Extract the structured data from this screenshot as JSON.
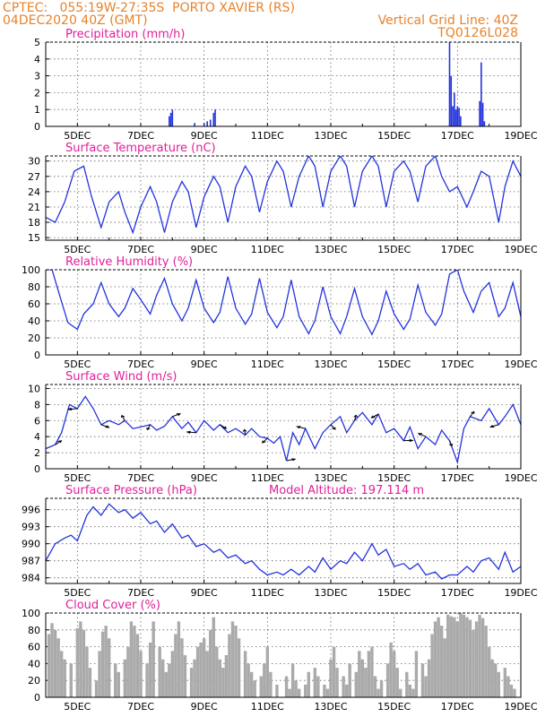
{
  "header": {
    "line1_left": "CPTEC:   055:19W-27:35S  PORTO XAVIER (RS)",
    "line2_left": "04DEC2020 40Z (GMT)",
    "line1_right": "Vertical Grid Line: 40Z",
    "line2_right": "TQ0126L028"
  },
  "colors": {
    "header": "#e8822a",
    "title": "#e0209a",
    "series": "#2233dd",
    "cloud": "#aaaaaa"
  },
  "chart_data": [
    {
      "id": "precip",
      "type": "bar",
      "title": "Precipitation (mm/h)",
      "ylim": [
        0,
        5
      ],
      "yticks": [
        0,
        1,
        2,
        3,
        4,
        5
      ],
      "xticks": [
        "5DEC",
        "7DEC",
        "9DEC",
        "11DEC",
        "13DEC",
        "15DEC",
        "17DEC",
        "19DEC"
      ],
      "xlim": [
        4.0,
        19.0
      ],
      "x": [
        7.9,
        7.95,
        8.0,
        8.7,
        9.0,
        9.1,
        9.2,
        9.3,
        9.35,
        16.75,
        16.8,
        16.85,
        16.9,
        16.95,
        17.0,
        17.05,
        17.1,
        17.7,
        17.75,
        17.8,
        17.85
      ],
      "values": [
        0.6,
        0.8,
        1.0,
        0.2,
        0.2,
        0.3,
        0.4,
        0.8,
        1.0,
        5.0,
        3.0,
        1.2,
        2.0,
        1.0,
        1.2,
        1.1,
        0.6,
        1.5,
        3.8,
        1.4,
        0.3
      ]
    },
    {
      "id": "temp",
      "type": "line",
      "title": "Surface Temperature (nC)",
      "ylim": [
        14.5,
        31
      ],
      "yticks": [
        15,
        18,
        21,
        24,
        27,
        30
      ],
      "xticks": [
        "5DEC",
        "7DEC",
        "9DEC",
        "11DEC",
        "13DEC",
        "15DEC",
        "17DEC",
        "19DEC"
      ],
      "xlim": [
        4.0,
        19.0
      ],
      "x": [
        4.0,
        4.3,
        4.6,
        4.9,
        5.2,
        5.45,
        5.75,
        6.0,
        6.3,
        6.5,
        6.75,
        7.0,
        7.3,
        7.5,
        7.75,
        8.0,
        8.3,
        8.5,
        8.75,
        9.0,
        9.3,
        9.5,
        9.75,
        10.0,
        10.3,
        10.5,
        10.75,
        11.0,
        11.3,
        11.5,
        11.75,
        12.0,
        12.3,
        12.5,
        12.75,
        13.0,
        13.3,
        13.5,
        13.75,
        14.0,
        14.3,
        14.5,
        14.75,
        15.0,
        15.3,
        15.5,
        15.75,
        16.0,
        16.3,
        16.5,
        16.75,
        17.0,
        17.3,
        17.5,
        17.75,
        18.0,
        18.3,
        18.5,
        18.75,
        19.0
      ],
      "values": [
        19,
        18,
        22,
        28,
        29,
        23,
        17,
        22,
        24,
        20,
        16,
        21,
        25,
        22,
        16,
        22,
        26,
        24,
        17,
        23,
        27,
        25,
        18,
        25,
        29,
        27,
        20,
        26,
        30,
        28,
        21,
        27,
        31,
        29,
        21,
        28,
        31,
        29,
        21,
        28,
        31,
        29,
        21,
        28,
        30,
        28,
        22,
        29,
        31,
        27,
        24,
        25,
        21,
        24,
        28,
        27,
        18,
        25,
        30,
        27
      ]
    },
    {
      "id": "rh",
      "type": "line",
      "title": "Relative Humidity (%)",
      "ylim": [
        0,
        100
      ],
      "yticks": [
        0,
        20,
        40,
        60,
        80,
        100
      ],
      "xticks": [
        "5DEC",
        "7DEC",
        "9DEC",
        "11DEC",
        "13DEC",
        "15DEC",
        "17DEC",
        "19DEC"
      ],
      "xlim": [
        4.0,
        19.0
      ],
      "x": [
        4.0,
        4.2,
        4.4,
        4.7,
        5.0,
        5.2,
        5.5,
        5.75,
        6.0,
        6.3,
        6.5,
        6.75,
        7.0,
        7.3,
        7.5,
        7.75,
        8.0,
        8.3,
        8.5,
        8.75,
        9.0,
        9.3,
        9.5,
        9.75,
        10.0,
        10.3,
        10.5,
        10.75,
        11.0,
        11.3,
        11.5,
        11.75,
        12.0,
        12.3,
        12.5,
        12.75,
        13.0,
        13.3,
        13.5,
        13.75,
        14.0,
        14.3,
        14.5,
        14.75,
        15.0,
        15.3,
        15.5,
        15.75,
        16.0,
        16.3,
        16.5,
        16.75,
        17.0,
        17.2,
        17.5,
        17.75,
        18.0,
        18.3,
        18.5,
        18.75,
        19.0
      ],
      "values": [
        100,
        100,
        75,
        38,
        30,
        48,
        60,
        85,
        60,
        45,
        55,
        78,
        65,
        48,
        70,
        90,
        60,
        40,
        55,
        88,
        55,
        38,
        50,
        92,
        55,
        36,
        48,
        90,
        50,
        32,
        45,
        88,
        45,
        25,
        40,
        80,
        45,
        25,
        45,
        78,
        45,
        24,
        40,
        75,
        48,
        30,
        42,
        82,
        50,
        35,
        48,
        95,
        100,
        75,
        50,
        75,
        85,
        45,
        55,
        85,
        45
      ]
    },
    {
      "id": "wind",
      "type": "line",
      "title": "Surface Wind (m/s)",
      "ylim": [
        0,
        10.5
      ],
      "yticks": [
        0,
        2,
        4,
        6,
        8,
        10
      ],
      "xticks": [
        "5DEC",
        "7DEC",
        "9DEC",
        "11DEC",
        "13DEC",
        "15DEC",
        "17DEC",
        "19DEC"
      ],
      "xlim": [
        4.0,
        19.0
      ],
      "x": [
        4.0,
        4.3,
        4.5,
        4.75,
        5.0,
        5.25,
        5.5,
        5.75,
        6.0,
        6.3,
        6.5,
        6.75,
        7.0,
        7.3,
        7.5,
        7.75,
        8.0,
        8.3,
        8.5,
        8.75,
        9.0,
        9.3,
        9.5,
        9.75,
        10.0,
        10.3,
        10.5,
        10.75,
        11.0,
        11.2,
        11.4,
        11.6,
        11.8,
        12.0,
        12.2,
        12.5,
        12.75,
        13.0,
        13.3,
        13.5,
        13.75,
        14.0,
        14.3,
        14.5,
        14.75,
        15.0,
        15.3,
        15.5,
        15.75,
        16.0,
        16.3,
        16.5,
        16.75,
        17.0,
        17.2,
        17.4,
        17.75,
        18.0,
        18.3,
        18.5,
        18.75,
        19.0
      ],
      "values": [
        2.5,
        3.0,
        4.5,
        8.0,
        7.5,
        9.0,
        7.5,
        5.5,
        6.0,
        5.5,
        6.0,
        5.0,
        5.2,
        5.5,
        4.8,
        5.3,
        6.5,
        5.0,
        5.8,
        4.5,
        6.0,
        4.8,
        5.5,
        4.5,
        5.0,
        4.2,
        5.0,
        4.0,
        3.8,
        3.2,
        4.0,
        1.0,
        4.5,
        3.0,
        5.0,
        2.5,
        4.5,
        5.5,
        6.5,
        4.5,
        6.0,
        7.0,
        5.5,
        6.8,
        4.5,
        5.0,
        3.5,
        5.2,
        2.5,
        4.0,
        3.0,
        4.8,
        3.5,
        0.8,
        5.0,
        6.5,
        6.0,
        7.5,
        5.5,
        6.5,
        8.0,
        5.5
      ]
    },
    {
      "id": "pressure",
      "type": "line",
      "title": "Surface Pressure (hPa)",
      "annotation": "Model Altitude: 197.114 m",
      "ylim": [
        983,
        998
      ],
      "yticks": [
        984,
        987,
        990,
        993,
        996
      ],
      "xticks": [
        "5DEC",
        "7DEC",
        "9DEC",
        "11DEC",
        "13DEC",
        "15DEC",
        "17DEC",
        "19DEC"
      ],
      "xlim": [
        4.0,
        19.0
      ],
      "x": [
        4.0,
        4.3,
        4.6,
        4.8,
        5.0,
        5.3,
        5.5,
        5.75,
        6.0,
        6.3,
        6.5,
        6.75,
        7.0,
        7.3,
        7.5,
        7.75,
        8.0,
        8.3,
        8.5,
        8.75,
        9.0,
        9.3,
        9.5,
        9.75,
        10.0,
        10.3,
        10.5,
        10.75,
        11.0,
        11.3,
        11.5,
        11.75,
        12.0,
        12.3,
        12.5,
        12.75,
        13.0,
        13.3,
        13.5,
        13.75,
        14.0,
        14.3,
        14.5,
        14.75,
        15.0,
        15.3,
        15.5,
        15.75,
        16.0,
        16.3,
        16.5,
        16.75,
        17.0,
        17.3,
        17.5,
        17.75,
        18.0,
        18.3,
        18.5,
        18.75,
        19.0
      ],
      "values": [
        987,
        990,
        991,
        991.5,
        990.5,
        995,
        996.5,
        995,
        997,
        995.5,
        996,
        994.5,
        995.5,
        993.5,
        994,
        992,
        993.5,
        991,
        991.5,
        989.5,
        990,
        988.5,
        989,
        987.5,
        988,
        986.5,
        987,
        985.5,
        984.5,
        985,
        984.5,
        985.5,
        984.5,
        986,
        985,
        987.5,
        985.5,
        987,
        986.5,
        988.5,
        987,
        990,
        988,
        989,
        986,
        986.5,
        985.5,
        986.5,
        984.5,
        985,
        983.8,
        984.5,
        984.5,
        986,
        985,
        987,
        987.5,
        985.5,
        988.5,
        985,
        986
      ]
    },
    {
      "id": "cloud",
      "type": "bar",
      "title": "Cloud Cover (%)",
      "ylim": [
        0,
        100
      ],
      "yticks": [
        0,
        20,
        40,
        60,
        80,
        100
      ],
      "xticks": [
        "5DEC",
        "7DEC",
        "9DEC",
        "11DEC",
        "13DEC",
        "15DEC",
        "17DEC",
        "19DEC"
      ],
      "xlim": [
        4.0,
        19.0
      ],
      "x": [
        4.1,
        4.2,
        4.3,
        4.4,
        4.5,
        4.6,
        4.8,
        5.0,
        5.1,
        5.2,
        5.3,
        5.4,
        5.6,
        5.7,
        5.8,
        5.9,
        6.0,
        6.2,
        6.3,
        6.5,
        6.6,
        6.7,
        6.8,
        6.9,
        7.0,
        7.2,
        7.3,
        7.4,
        7.6,
        7.7,
        7.8,
        7.9,
        8.0,
        8.1,
        8.2,
        8.3,
        8.4,
        8.6,
        8.7,
        8.8,
        8.9,
        9.0,
        9.1,
        9.2,
        9.3,
        9.4,
        9.5,
        9.6,
        9.7,
        9.8,
        9.9,
        10.0,
        10.1,
        10.3,
        10.4,
        10.5,
        10.6,
        10.8,
        10.9,
        11.0,
        11.1,
        11.3,
        11.6,
        11.7,
        11.8,
        11.9,
        12.0,
        12.2,
        12.3,
        12.5,
        12.6,
        12.8,
        12.9,
        13.0,
        13.1,
        13.2,
        13.4,
        13.5,
        13.6,
        13.8,
        13.9,
        14.0,
        14.1,
        14.2,
        14.3,
        14.4,
        14.5,
        14.6,
        14.8,
        14.9,
        15.0,
        15.1,
        15.2,
        15.4,
        15.5,
        15.6,
        15.7,
        15.9,
        16.0,
        16.1,
        16.2,
        16.3,
        16.4,
        16.5,
        16.6,
        16.7,
        16.8,
        16.9,
        17.0,
        17.1,
        17.2,
        17.3,
        17.4,
        17.5,
        17.6,
        17.7,
        17.8,
        17.9,
        18.0,
        18.1,
        18.2,
        18.3,
        18.5,
        18.6,
        18.7,
        18.8
      ],
      "values": [
        75,
        88,
        80,
        70,
        55,
        45,
        40,
        82,
        90,
        80,
        60,
        35,
        20,
        55,
        78,
        85,
        70,
        40,
        30,
        45,
        60,
        90,
        85,
        75,
        55,
        40,
        65,
        90,
        60,
        45,
        30,
        40,
        55,
        75,
        90,
        70,
        50,
        35,
        45,
        60,
        65,
        70,
        55,
        80,
        95,
        60,
        45,
        35,
        50,
        75,
        90,
        85,
        70,
        55,
        40,
        30,
        20,
        25,
        40,
        60,
        30,
        15,
        25,
        10,
        40,
        20,
        10,
        15,
        30,
        35,
        25,
        15,
        10,
        45,
        60,
        35,
        25,
        15,
        40,
        30,
        55,
        45,
        35,
        55,
        60,
        25,
        10,
        20,
        40,
        65,
        55,
        35,
        10,
        30,
        15,
        10,
        55,
        40,
        25,
        45,
        75,
        90,
        95,
        85,
        70,
        98,
        96,
        95,
        90,
        100,
        98,
        95,
        92,
        80,
        90,
        98,
        94,
        85,
        60,
        45,
        40,
        30,
        35,
        25,
        15,
        10
      ]
    }
  ]
}
